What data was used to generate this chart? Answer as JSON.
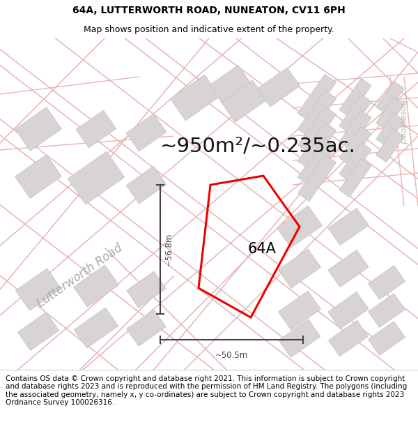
{
  "title": "64A, LUTTERWORTH ROAD, NUNEATON, CV11 6PH",
  "subtitle": "Map shows position and indicative extent of the property.",
  "area_text": "~950m²/~0.235ac.",
  "label_64a": "64A",
  "road_label": "Lutterworth Road",
  "rosewood_label": "Rosewood",
  "dim_vertical": "~56.8m",
  "dim_horizontal": "~50.5m",
  "copyright_lines": [
    "Contains OS data © Crown copyright and database right 2021. This information is subject to Crown copyright and database rights 2023 and is reproduced with the permission of",
    "HM Land Registry. The polygons (including the associated geometry, namely x, y co-ordinates) are subject to Crown copyright and database rights 2023 Ordnance Survey",
    "100026316."
  ],
  "map_bg": "#f7f5f5",
  "road_line_color": "#e8b4b4",
  "road_fill_color": "#f5efef",
  "building_face": "#d8d4d4",
  "building_edge": "#c8c4c4",
  "property_color": "#ee0000",
  "dim_color": "#444444",
  "label_color": "#aaaaaa",
  "title_fontsize": 10,
  "subtitle_fontsize": 9,
  "area_fontsize": 21,
  "label_fontsize": 15,
  "road_label_fontsize": 12,
  "copyright_fontsize": 7.5
}
